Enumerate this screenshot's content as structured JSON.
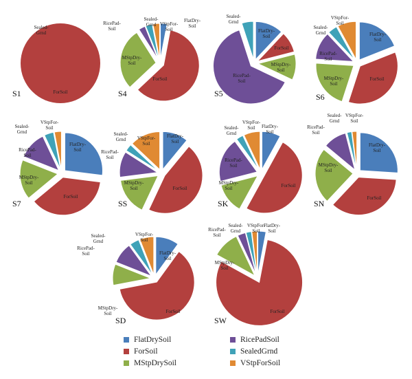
{
  "colors": {
    "FlatDrySoil": "#4a7ebb",
    "ForSoil": "#b3403e",
    "MStpDrySoil": "#8faf4a",
    "RicePadSoil": "#6e4f97",
    "SealedGrnd": "#3fa2b8",
    "VStpForSoil": "#e08a33"
  },
  "legend": [
    {
      "key": "FlatDrySoil",
      "label": "FlatDrySoil"
    },
    {
      "key": "RicePadSoil",
      "label": "RicePadSoil"
    },
    {
      "key": "ForSoil",
      "label": "ForSoil"
    },
    {
      "key": "SealedGrnd",
      "label": "SealedGrnd"
    },
    {
      "key": "MStpDrySoil",
      "label": "MStpDrySoil"
    },
    {
      "key": "VStpForSoil",
      "label": "VStpForSoil"
    }
  ],
  "chart_data": [
    {
      "type": "pie",
      "title": "S1",
      "slices": [
        {
          "label": "FlatDrySoil",
          "value": 0
        },
        {
          "label": "ForSoil",
          "value": 100
        },
        {
          "label": "MStpDrySoil",
          "value": 0
        },
        {
          "label": "RicePadSoil",
          "value": 0
        },
        {
          "label": "SealedGrnd",
          "value": 0
        },
        {
          "label": "VStpForSoil",
          "value": 0
        }
      ],
      "data_labels": [
        "ForSoil",
        "Sealed-Grnd"
      ]
    },
    {
      "type": "pie",
      "title": "S4",
      "slices": [
        {
          "label": "FlatDrySoil",
          "value": 3
        },
        {
          "label": "ForSoil",
          "value": 60
        },
        {
          "label": "MStpDrySoil",
          "value": 28
        },
        {
          "label": "RicePadSoil",
          "value": 3
        },
        {
          "label": "SealedGrnd",
          "value": 3
        },
        {
          "label": "VStpForSoil",
          "value": 3
        }
      ],
      "data_labels": [
        "ForSoil",
        "MStpDry-Soil",
        "RicePad-Soil",
        "Sealed-Grnd",
        "VStpFor-Soil",
        "FlatDry-Soil"
      ]
    },
    {
      "type": "pie",
      "title": "S5",
      "slices": [
        {
          "label": "FlatDrySoil",
          "value": 12
        },
        {
          "label": "ForSoil",
          "value": 9
        },
        {
          "label": "MStpDrySoil",
          "value": 11
        },
        {
          "label": "RicePadSoil",
          "value": 63
        },
        {
          "label": "SealedGrnd",
          "value": 5
        },
        {
          "label": "VStpForSoil",
          "value": 0
        }
      ],
      "data_labels": [
        "FlatDry-Soil",
        "ForSoil",
        "MStpDry-Soil",
        "RicePad-Soil",
        "Sealed-Grnd"
      ]
    },
    {
      "type": "pie",
      "title": "S6",
      "slices": [
        {
          "label": "FlatDrySoil",
          "value": 19
        },
        {
          "label": "ForSoil",
          "value": 36
        },
        {
          "label": "MStpDrySoil",
          "value": 21
        },
        {
          "label": "RicePadSoil",
          "value": 12
        },
        {
          "label": "SealedGrnd",
          "value": 4
        },
        {
          "label": "VStpForSoil",
          "value": 8
        }
      ],
      "data_labels": [
        "FlatDry-Soil",
        "ForSoil",
        "MStpDry-Soil",
        "RicePad-Soil",
        "Sealed-Grnd",
        "VStpFor-Soil"
      ]
    },
    {
      "type": "pie",
      "title": "S7",
      "slices": [
        {
          "label": "FlatDrySoil",
          "value": 27
        },
        {
          "label": "ForSoil",
          "value": 37
        },
        {
          "label": "MStpDrySoil",
          "value": 17
        },
        {
          "label": "RicePadSoil",
          "value": 12
        },
        {
          "label": "SealedGrnd",
          "value": 4
        },
        {
          "label": "VStpForSoil",
          "value": 3
        }
      ],
      "data_labels": [
        "FlatDry-Soil",
        "ForSoil",
        "MStpDry-Soil",
        "RicePad-Soil",
        "Sealed-Grnd",
        "VStpFor-Soil"
      ]
    },
    {
      "type": "pie",
      "title": "SS",
      "slices": [
        {
          "label": "FlatDrySoil",
          "value": 11
        },
        {
          "label": "ForSoil",
          "value": 46
        },
        {
          "label": "MStpDrySoil",
          "value": 16
        },
        {
          "label": "RicePadSoil",
          "value": 11
        },
        {
          "label": "SealedGrnd",
          "value": 3
        },
        {
          "label": "VStpForSoil",
          "value": 13
        }
      ],
      "data_labels": [
        "FlatDry-Soil",
        "ForSoil",
        "MStpDry-Soil",
        "RicePad-Soil",
        "Sealed-Grnd",
        "VStpFor-Soil"
      ]
    },
    {
      "type": "pie",
      "title": "SK",
      "slices": [
        {
          "label": "FlatDrySoil",
          "value": 8
        },
        {
          "label": "ForSoil",
          "value": 50
        },
        {
          "label": "MStpDrySoil",
          "value": 13
        },
        {
          "label": "RicePadSoil",
          "value": 19
        },
        {
          "label": "SealedGrnd",
          "value": 3
        },
        {
          "label": "VStpForSoil",
          "value": 7
        }
      ],
      "data_labels": [
        "FlatDry-Soil",
        "ForSoil",
        "MStpDry-Soil",
        "RicePad-Soil",
        "Sealed-Grnd",
        "VStpFor-Soil"
      ]
    },
    {
      "type": "pie",
      "title": "SN",
      "slices": [
        {
          "label": "FlatDrySoil",
          "value": 26
        },
        {
          "label": "ForSoil",
          "value": 36
        },
        {
          "label": "MStpDrySoil",
          "value": 24
        },
        {
          "label": "RicePadSoil",
          "value": 10
        },
        {
          "label": "SealedGrnd",
          "value": 2
        },
        {
          "label": "VStpForSoil",
          "value": 2
        }
      ],
      "data_labels": [
        "FlatDry-Soil",
        "ForSoil",
        "MStpDry-Soil",
        "RicePad-Soil",
        "Sealed-Grnd",
        "VStpFor-Soil"
      ]
    },
    {
      "type": "pie",
      "title": "SD",
      "slices": [
        {
          "label": "FlatDrySoil",
          "value": 10
        },
        {
          "label": "ForSoil",
          "value": 62
        },
        {
          "label": "MStpDrySoil",
          "value": 9
        },
        {
          "label": "RicePadSoil",
          "value": 9
        },
        {
          "label": "SealedGrnd",
          "value": 4
        },
        {
          "label": "VStpForSoil",
          "value": 6
        }
      ],
      "data_labels": [
        "FlatDry-Soil",
        "ForSoil",
        "MStpDry-Soil",
        "RicePad-Soil",
        "Sealed-Grnd",
        "VStpFor-Soil"
      ]
    },
    {
      "type": "pie",
      "title": "SW",
      "slices": [
        {
          "label": "FlatDrySoil",
          "value": 3
        },
        {
          "label": "ForSoil",
          "value": 80
        },
        {
          "label": "MStpDrySoil",
          "value": 10
        },
        {
          "label": "RicePadSoil",
          "value": 3
        },
        {
          "label": "SealedGrnd",
          "value": 2
        },
        {
          "label": "VStpForSoil",
          "value": 2
        }
      ],
      "data_labels": [
        "FlatDry-Soil",
        "ForSoil",
        "MStpDry-Soil",
        "RicePad-Soil",
        "Sealed-Grnd",
        "VStpFor-Soil"
      ]
    }
  ]
}
